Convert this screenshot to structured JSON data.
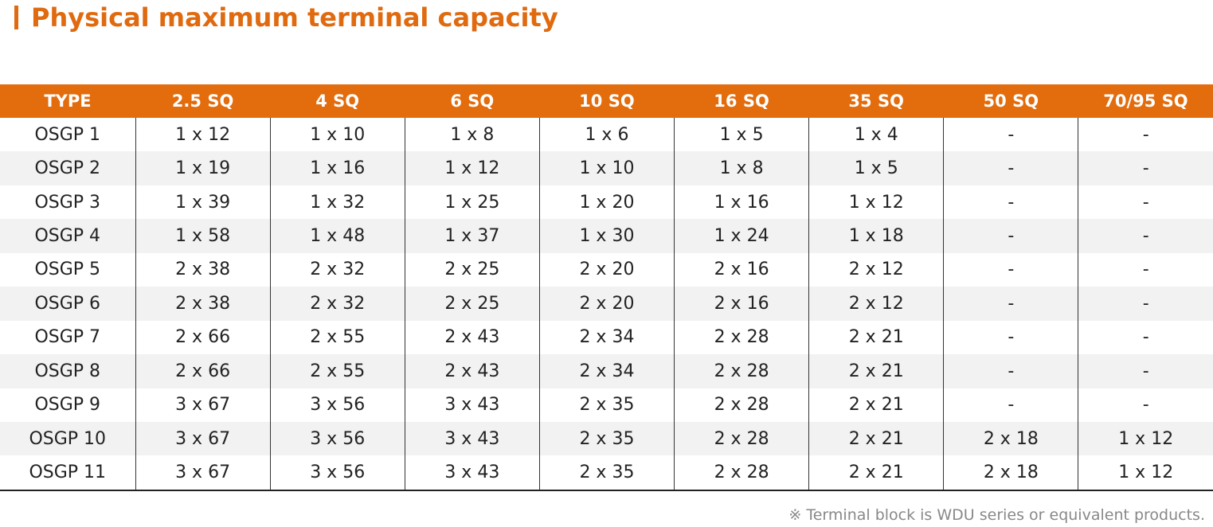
{
  "header": {
    "title": "Physical maximum terminal capacity"
  },
  "table": {
    "columns": [
      "TYPE",
      "2.5 SQ",
      "4 SQ",
      "6 SQ",
      "10 SQ",
      "16 SQ",
      "35 SQ",
      "50 SQ",
      "70/95 SQ"
    ],
    "rows": [
      [
        "OSGP 1",
        "1 x 12",
        "1 x 10",
        "1 x 8",
        "1 x 6",
        "1 x 5",
        "1 x 4",
        "-",
        "-"
      ],
      [
        "OSGP 2",
        "1 x 19",
        "1 x 16",
        "1 x 12",
        "1 x 10",
        "1 x 8",
        "1 x 5",
        "-",
        "-"
      ],
      [
        "OSGP 3",
        "1 x 39",
        "1 x 32",
        "1 x 25",
        "1 x 20",
        "1 x 16",
        "1 x 12",
        "-",
        "-"
      ],
      [
        "OSGP 4",
        "1 x 58",
        "1 x 48",
        "1 x 37",
        "1 x 30",
        "1 x 24",
        "1 x 18",
        "-",
        "-"
      ],
      [
        "OSGP 5",
        "2 x 38",
        "2 x 32",
        "2 x 25",
        "2 x 20",
        "2 x 16",
        "2 x 12",
        "-",
        "-"
      ],
      [
        "OSGP 6",
        "2 x 38",
        "2 x 32",
        "2 x 25",
        "2 x 20",
        "2 x 16",
        "2 x 12",
        "-",
        "-"
      ],
      [
        "OSGP 7",
        "2 x 66",
        "2 x 55",
        "2 x 43",
        "2 x 34",
        "2 x 28",
        "2 x 21",
        "-",
        "-"
      ],
      [
        "OSGP 8",
        "2 x 66",
        "2 x 55",
        "2 x 43",
        "2 x 34",
        "2 x 28",
        "2 x 21",
        "-",
        "-"
      ],
      [
        "OSGP 9",
        "3 x 67",
        "3 x 56",
        "3 x 43",
        "2 x 35",
        "2 x 28",
        "2 x 21",
        "-",
        "-"
      ],
      [
        "OSGP 10",
        "3 x 67",
        "3 x 56",
        "3 x 43",
        "2 x 35",
        "2 x 28",
        "2 x 21",
        "2 x 18",
        "1 x 12"
      ],
      [
        "OSGP 11",
        "3 x 67",
        "3 x 56",
        "3 x 43",
        "2 x 35",
        "2 x 28",
        "2 x 21",
        "2 x 18",
        "1 x 12"
      ]
    ]
  },
  "footnote": "※ Terminal block is WDU series or equivalent products."
}
